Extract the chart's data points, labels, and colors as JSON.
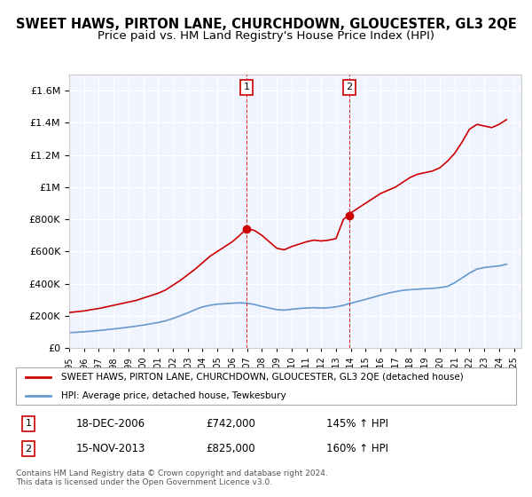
{
  "title": "SWEET HAWS, PIRTON LANE, CHURCHDOWN, GLOUCESTER, GL3 2QE",
  "subtitle": "Price paid vs. HM Land Registry's House Price Index (HPI)",
  "title_fontsize": 10.5,
  "subtitle_fontsize": 9.5,
  "legend_line1": "SWEET HAWS, PIRTON LANE, CHURCHDOWN, GLOUCESTER, GL3 2QE (detached house)",
  "legend_line2": "HPI: Average price, detached house, Tewkesbury",
  "annotation1_label": "1",
  "annotation1_date": "18-DEC-2006",
  "annotation1_price": "£742,000",
  "annotation1_hpi": "145% ↑ HPI",
  "annotation2_label": "2",
  "annotation2_date": "15-NOV-2013",
  "annotation2_price": "£825,000",
  "annotation2_hpi": "160% ↑ HPI",
  "footer1": "Contains HM Land Registry data © Crown copyright and database right 2024.",
  "footer2": "This data is licensed under the Open Government Licence v3.0.",
  "red_color": "#cc0000",
  "blue_color": "#6699cc",
  "marker_color": "#cc0000",
  "vline_color": "#cc0000",
  "background_color": "#ffffff",
  "plot_bg_color": "#f0f4ff",
  "grid_color": "#ffffff",
  "ylim": [
    0,
    1700000
  ],
  "yticks": [
    0,
    200000,
    400000,
    600000,
    800000,
    1000000,
    1200000,
    1400000,
    1600000
  ],
  "xlim_start": 1995.0,
  "xlim_end": 2025.5,
  "marker1_x": 2006.97,
  "marker1_y": 742000,
  "marker2_x": 2013.88,
  "marker2_y": 825000,
  "red_x": [
    1995.0,
    1995.5,
    1996.0,
    1996.5,
    1997.0,
    1997.5,
    1998.0,
    1998.5,
    1999.0,
    1999.5,
    2000.0,
    2000.5,
    2001.0,
    2001.5,
    2002.0,
    2002.5,
    2003.0,
    2003.5,
    2004.0,
    2004.5,
    2005.0,
    2005.5,
    2006.0,
    2006.5,
    2006.97,
    2007.5,
    2008.0,
    2008.5,
    2009.0,
    2009.5,
    2010.0,
    2010.5,
    2011.0,
    2011.5,
    2012.0,
    2012.5,
    2013.0,
    2013.5,
    2013.88,
    2014.0,
    2014.5,
    2015.0,
    2015.5,
    2016.0,
    2016.5,
    2017.0,
    2017.5,
    2018.0,
    2018.5,
    2019.0,
    2019.5,
    2020.0,
    2020.5,
    2021.0,
    2021.5,
    2022.0,
    2022.5,
    2023.0,
    2023.5,
    2024.0,
    2024.5
  ],
  "red_y": [
    220000,
    225000,
    230000,
    238000,
    245000,
    255000,
    265000,
    275000,
    285000,
    295000,
    310000,
    325000,
    340000,
    360000,
    390000,
    420000,
    455000,
    490000,
    530000,
    570000,
    600000,
    630000,
    660000,
    700000,
    742000,
    730000,
    700000,
    660000,
    620000,
    610000,
    630000,
    645000,
    660000,
    670000,
    665000,
    670000,
    680000,
    800000,
    825000,
    840000,
    870000,
    900000,
    930000,
    960000,
    980000,
    1000000,
    1030000,
    1060000,
    1080000,
    1090000,
    1100000,
    1120000,
    1160000,
    1210000,
    1280000,
    1360000,
    1390000,
    1380000,
    1370000,
    1390000,
    1420000
  ],
  "blue_x": [
    1995.0,
    1995.5,
    1996.0,
    1996.5,
    1997.0,
    1997.5,
    1998.0,
    1998.5,
    1999.0,
    1999.5,
    2000.0,
    2000.5,
    2001.0,
    2001.5,
    2002.0,
    2002.5,
    2003.0,
    2003.5,
    2004.0,
    2004.5,
    2005.0,
    2005.5,
    2006.0,
    2006.5,
    2007.0,
    2007.5,
    2008.0,
    2008.5,
    2009.0,
    2009.5,
    2010.0,
    2010.5,
    2011.0,
    2011.5,
    2012.0,
    2012.5,
    2013.0,
    2013.5,
    2014.0,
    2014.5,
    2015.0,
    2015.5,
    2016.0,
    2016.5,
    2017.0,
    2017.5,
    2018.0,
    2018.5,
    2019.0,
    2019.5,
    2020.0,
    2020.5,
    2021.0,
    2021.5,
    2022.0,
    2022.5,
    2023.0,
    2023.5,
    2024.0,
    2024.5
  ],
  "blue_y": [
    95000,
    97000,
    100000,
    104000,
    108000,
    113000,
    118000,
    123000,
    129000,
    135000,
    142000,
    150000,
    158000,
    168000,
    183000,
    200000,
    218000,
    238000,
    255000,
    265000,
    272000,
    275000,
    278000,
    280000,
    278000,
    270000,
    258000,
    248000,
    238000,
    235000,
    240000,
    245000,
    248000,
    250000,
    248000,
    250000,
    255000,
    265000,
    278000,
    290000,
    302000,
    315000,
    328000,
    340000,
    350000,
    358000,
    362000,
    365000,
    368000,
    370000,
    375000,
    382000,
    405000,
    435000,
    465000,
    490000,
    500000,
    505000,
    510000,
    520000
  ]
}
